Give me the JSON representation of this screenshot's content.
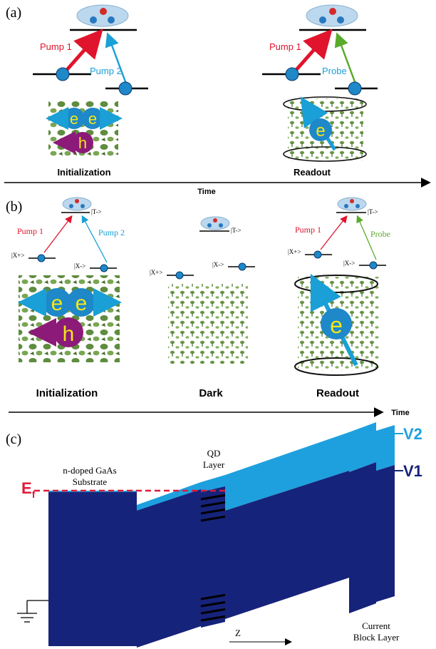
{
  "panel_a": {
    "label": "(a)",
    "pump1": "Pump 1",
    "pump2": "Pump 2",
    "probe": "Probe",
    "init": "Initialization",
    "readout": "Readout",
    "time": "Time",
    "electron": "e",
    "hole": "h"
  },
  "panel_b": {
    "label": "(b)",
    "pump1": "Pump 1",
    "pump2": "Pump 2",
    "probe": "Probe",
    "state_t": "|T->",
    "state_xp": "|X+>",
    "state_xm": "|X->",
    "init": "Initialization",
    "dark": "Dark",
    "readout": "Readout",
    "time": "Time",
    "electron": "e",
    "hole": "h"
  },
  "panel_c": {
    "label": "(c)",
    "ef_main": "E",
    "ef_sub": "f",
    "substrate_line1": "n-doped GaAs",
    "substrate_line2": "Substrate",
    "qd_line1": "QD",
    "qd_line2": "Layer",
    "v2": "V2",
    "v1": "V1",
    "z": "Z",
    "block_line1": "Current",
    "block_line2": "Block Layer"
  },
  "colors": {
    "pump1": "#e0142c",
    "pump2": "#1a9fd6",
    "probe": "#5aaa2a",
    "electron": "#1e88c8",
    "electron_text": "#f2e61a",
    "hole": "#8c1a78",
    "nuclei": "#6e9a4a",
    "band_dark": "#16237a",
    "band_light": "#1ea0de",
    "fermi": "#e01a3a",
    "v_label": "#1ea0de"
  }
}
